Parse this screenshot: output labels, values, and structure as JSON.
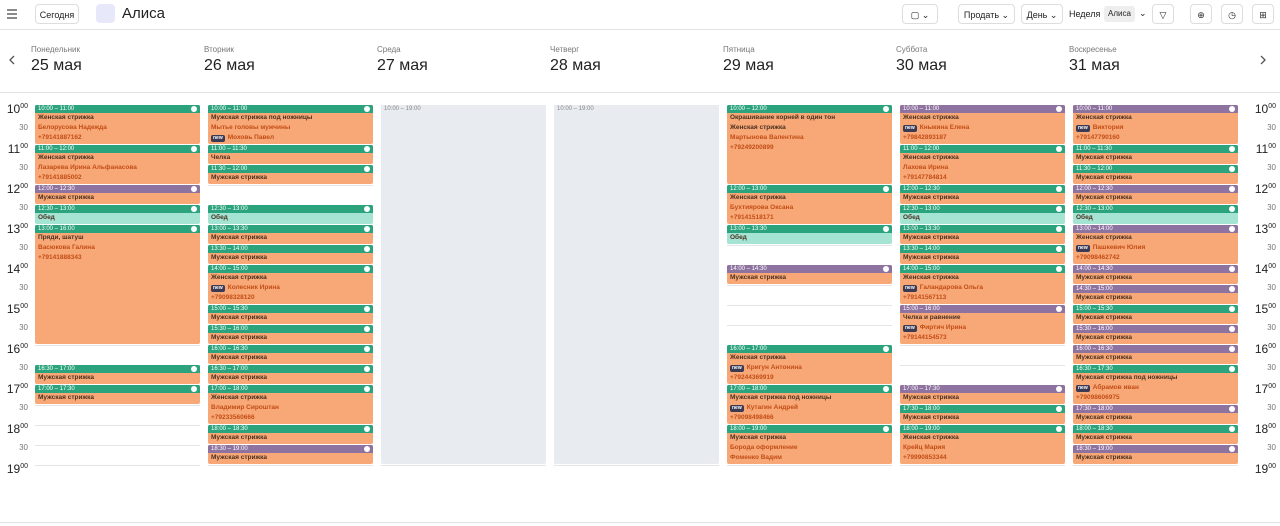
{
  "toolbar": {
    "today": "Сегодня",
    "staff": "Алиса",
    "sell": "Продать",
    "day": "День",
    "week": "Неделя",
    "staff_filter": "Алиса"
  },
  "colors": {
    "green": "#2ba37c",
    "purple": "#8e73a0",
    "orange": "#f8a877",
    "break": "#a5e3d3",
    "off": "#e8ebef"
  },
  "time_axis": [
    {
      "hour": "10",
      "min": "00"
    },
    "30",
    {
      "hour": "11",
      "min": "00"
    },
    "30",
    {
      "hour": "12",
      "min": "00"
    },
    "30",
    {
      "hour": "13",
      "min": "00"
    },
    "30",
    {
      "hour": "14",
      "min": "00"
    },
    "30",
    {
      "hour": "15",
      "min": "00"
    },
    "30",
    {
      "hour": "16",
      "min": "00"
    },
    "30",
    {
      "hour": "17",
      "min": "00"
    },
    "30",
    {
      "hour": "18",
      "min": "00"
    },
    "30",
    {
      "hour": "19",
      "min": "00"
    }
  ],
  "days": [
    {
      "weekday": "Понедельник",
      "date": "25 мая",
      "events": [
        {
          "time": "10:00 – 11:00",
          "color": "green",
          "lines": [
            "Женская стрижка",
            "Белорусова Надежда",
            "+79141887162"
          ]
        },
        {
          "time": "11:00 – 12:00",
          "color": "green",
          "lines": [
            "Женская стрижка",
            "Лазарева Ирина Альфанасова",
            "+79141885002"
          ]
        },
        {
          "time": "12:00 – 12:30",
          "color": "purple",
          "lines": [
            "Мужская стрижка"
          ]
        },
        {
          "time": "12:30 – 13:00",
          "color": "green",
          "body": "break",
          "lines": [
            "Обед"
          ]
        },
        {
          "time": "13:00 – 16:00",
          "color": "green",
          "lines": [
            "Пряди, шатуш",
            "Васюкова Галина",
            "+79141888343"
          ]
        },
        {
          "time": "16:30 – 17:00",
          "color": "green",
          "lines": [
            "Мужская стрижка"
          ]
        },
        {
          "time": "17:00 – 17:30",
          "color": "green",
          "lines": [
            "Мужская стрижка"
          ]
        }
      ]
    },
    {
      "weekday": "Вторник",
      "date": "26 мая",
      "events": [
        {
          "time": "10:00 – 11:00",
          "color": "green",
          "lines": [
            "Мужская стрижка под ножницы",
            "Мытье головы мужчины",
            {
              "badge": "new",
              "text": "Моховь Павел"
            }
          ]
        },
        {
          "time": "11:00 – 11:30",
          "color": "green",
          "lines": [
            "Челка"
          ]
        },
        {
          "time": "11:30 – 12:00",
          "color": "green",
          "lines": [
            "Мужская стрижка"
          ]
        },
        {
          "time": "12:30 – 13:00",
          "color": "green",
          "body": "break",
          "lines": [
            "Обед"
          ]
        },
        {
          "time": "13:00 – 13:30",
          "color": "green",
          "lines": [
            "Мужская стрижка"
          ]
        },
        {
          "time": "13:30 – 14:00",
          "color": "green",
          "lines": [
            "Мужская стрижка"
          ]
        },
        {
          "time": "14:00 – 15:00",
          "color": "green",
          "lines": [
            "Женская стрижка",
            {
              "badge": "new",
              "text": "Колесник Ирина"
            },
            "+79098328120"
          ]
        },
        {
          "time": "15:00 – 15:30",
          "color": "green",
          "lines": [
            "Мужская стрижка"
          ]
        },
        {
          "time": "15:30 – 16:00",
          "color": "green",
          "lines": [
            "Мужская стрижка"
          ]
        },
        {
          "time": "16:00 – 16:30",
          "color": "green",
          "lines": [
            "Мужская стрижка"
          ]
        },
        {
          "time": "16:30 – 17:00",
          "color": "green",
          "lines": [
            "Мужская стрижка"
          ]
        },
        {
          "time": "17:00 – 18:00",
          "color": "green",
          "lines": [
            "Женская стрижка",
            "Владимир Сироштан",
            "+79233560666"
          ]
        },
        {
          "time": "18:00 – 18:30",
          "color": "green",
          "lines": [
            "Мужская стрижка"
          ]
        },
        {
          "time": "18:30 – 19:00",
          "color": "purple",
          "lines": [
            "Мужская стрижка"
          ]
        }
      ]
    },
    {
      "weekday": "Среда",
      "date": "27 мая",
      "events": [
        {
          "time": "10:00 – 19:00",
          "color": "off",
          "body": "off",
          "lines": []
        }
      ]
    },
    {
      "weekday": "Четверг",
      "date": "28 мая",
      "events": [
        {
          "time": "10:00 – 19:00",
          "color": "off",
          "body": "off",
          "lines": []
        }
      ]
    },
    {
      "weekday": "Пятница",
      "date": "29 мая",
      "events": [
        {
          "time": "10:00 – 12:00",
          "color": "green",
          "lines": [
            "Окрашивание корней в один тон",
            "Женская стрижка",
            "Мартынова Валентина",
            "+79249200899"
          ]
        },
        {
          "time": "12:00 – 13:00",
          "color": "green",
          "lines": [
            "Женская стрижка",
            "Бухтиярова Оксана",
            "+79141518171"
          ]
        },
        {
          "time": "13:00 – 13:30",
          "color": "green",
          "body": "break",
          "lines": [
            "Обед"
          ]
        },
        {
          "time": "14:00 – 14:30",
          "color": "purple",
          "lines": [
            "Мужская стрижка"
          ]
        },
        {
          "time": "16:00 – 17:00",
          "color": "green",
          "lines": [
            "Женская стрижка",
            {
              "badge": "new",
              "text": "Кригун Антонина"
            },
            "+79244369919"
          ]
        },
        {
          "time": "17:00 – 18:00",
          "color": "green",
          "lines": [
            "Мужская стрижка под ножницы",
            {
              "badge": "new",
              "text": "Кутагин Андрей"
            },
            "+79098498466"
          ]
        },
        {
          "time": "18:00 – 19:00",
          "color": "green",
          "lines": [
            "Мужская стрижка",
            "Борода оформление",
            "Фоменко Вадим"
          ]
        }
      ]
    },
    {
      "weekday": "Суббота",
      "date": "30 мая",
      "events": [
        {
          "time": "10:00 – 11:00",
          "color": "purple",
          "lines": [
            "Женская стрижка",
            {
              "badge": "new",
              "text": "Кныкина Елена"
            },
            "+79842893187"
          ]
        },
        {
          "time": "11:00 – 12:00",
          "color": "green",
          "lines": [
            "Женская стрижка",
            "Лахова Ирина",
            "+79147784814"
          ]
        },
        {
          "time": "12:00 – 12:30",
          "color": "green",
          "lines": [
            "Мужская стрижка"
          ]
        },
        {
          "time": "12:30 – 13:00",
          "color": "green",
          "body": "break",
          "lines": [
            "Обед"
          ]
        },
        {
          "time": "13:00 – 13:30",
          "color": "green",
          "lines": [
            "Мужская стрижка"
          ]
        },
        {
          "time": "13:30 – 14:00",
          "color": "green",
          "lines": [
            "Мужская стрижка"
          ]
        },
        {
          "time": "14:00 – 15:00",
          "color": "green",
          "lines": [
            "Женская стрижка",
            {
              "badge": "new",
              "text": "Галандарова Ольга"
            },
            "+79141567113"
          ]
        },
        {
          "time": "15:00 – 16:00",
          "color": "purple",
          "lines": [
            "Челка и равнение",
            {
              "badge": "new",
              "text": "Фиртич Ирина"
            },
            "+79144154573"
          ]
        },
        {
          "time": "17:00 – 17:30",
          "color": "purple",
          "lines": [
            "Мужская стрижка"
          ]
        },
        {
          "time": "17:30 – 18:00",
          "color": "green",
          "lines": [
            "Мужская стрижка"
          ]
        },
        {
          "time": "18:00 – 19:00",
          "color": "green",
          "lines": [
            "Женская стрижка",
            "Крейц Мария",
            "+79990853344"
          ]
        }
      ]
    },
    {
      "weekday": "Воскресенье",
      "date": "31 мая",
      "events": [
        {
          "time": "10:00 – 11:00",
          "color": "purple",
          "lines": [
            "Женская стрижка",
            {
              "badge": "new",
              "text": "Виктория"
            },
            "+79147790160"
          ]
        },
        {
          "time": "11:00 – 11:30",
          "color": "green",
          "lines": [
            "Мужская стрижка"
          ]
        },
        {
          "time": "11:30 – 12:00",
          "color": "green",
          "lines": [
            "Мужская стрижка"
          ]
        },
        {
          "time": "12:00 – 12:30",
          "color": "purple",
          "lines": [
            "Мужская стрижка"
          ]
        },
        {
          "time": "12:30 – 13:00",
          "color": "green",
          "body": "break",
          "lines": [
            "Обед"
          ]
        },
        {
          "time": "13:00 – 14:00",
          "color": "purple",
          "lines": [
            "Женская стрижка",
            {
              "badge": "new",
              "text": "Пашкевич Юлия"
            },
            "+79098462742"
          ]
        },
        {
          "time": "14:00 – 14:30",
          "color": "purple",
          "lines": [
            "Мужская стрижка"
          ]
        },
        {
          "time": "14:30 – 15:00",
          "color": "purple",
          "lines": [
            "Мужская стрижка"
          ]
        },
        {
          "time": "15:00 – 15:30",
          "color": "green",
          "lines": [
            "Мужская стрижка"
          ]
        },
        {
          "time": "15:30 – 16:00",
          "color": "purple",
          "lines": [
            "Мужская стрижка"
          ]
        },
        {
          "time": "16:00 – 16:30",
          "color": "purple",
          "lines": [
            "Мужская стрижка"
          ]
        },
        {
          "time": "16:30 – 17:30",
          "color": "green",
          "lines": [
            "Мужская стрижка под ножницы",
            {
              "badge": "new",
              "text": "Абрамов иван"
            },
            "+79098606975"
          ]
        },
        {
          "time": "17:30 – 18:00",
          "color": "purple",
          "lines": [
            "Мужская стрижка"
          ]
        },
        {
          "time": "18:00 – 18:30",
          "color": "green",
          "lines": [
            "Мужская стрижка"
          ]
        },
        {
          "time": "18:30 – 19:00",
          "color": "purple",
          "lines": [
            "Мужская стрижка"
          ]
        }
      ]
    }
  ]
}
